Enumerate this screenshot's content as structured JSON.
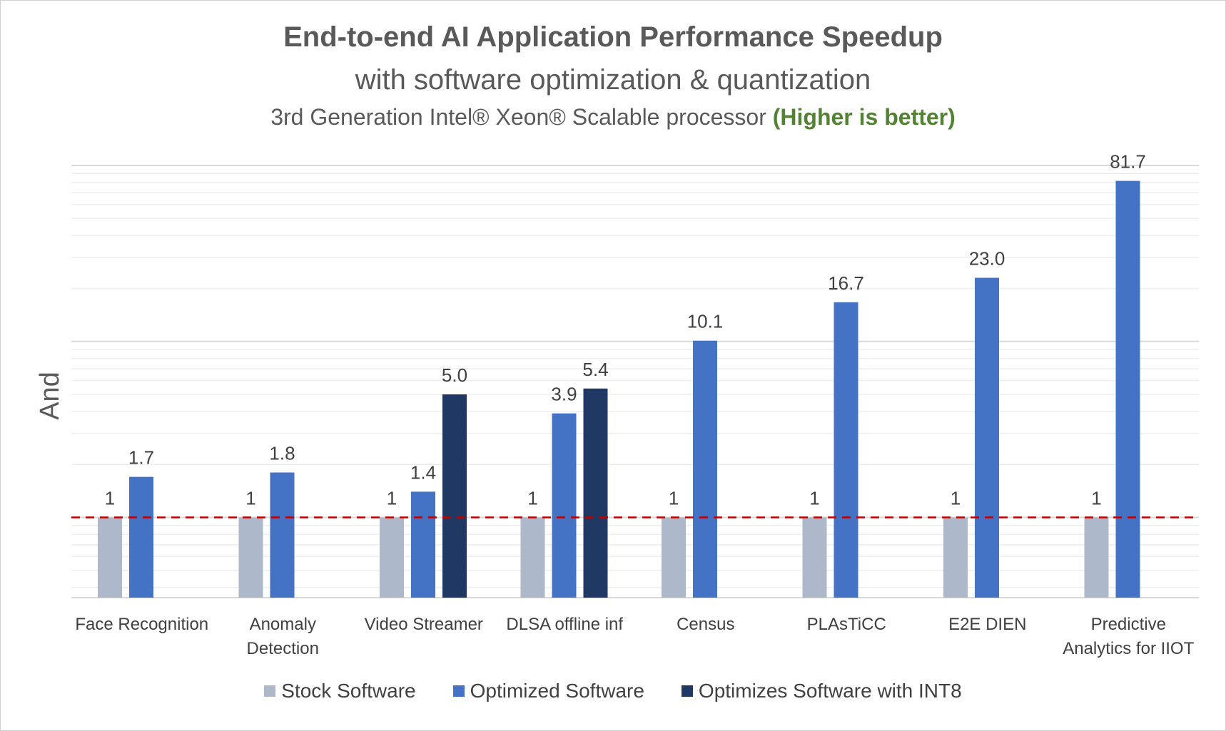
{
  "chart_data": {
    "type": "bar",
    "title": "End-to-end AI Application Performance Speedup",
    "subtitle": "with software optimization & quantization",
    "subtitle2_prefix": "3rd Generation Intel® Xeon® Scalable processor ",
    "subtitle2_highlight": "(Higher is better)",
    "ylabel": "And",
    "xlabel": "",
    "y_scale": "log",
    "ylim": [
      0.35,
      100
    ],
    "grid": true,
    "legend_position": "bottom",
    "reference_line": {
      "y": 1,
      "style": "dashed",
      "color": "#c00000"
    },
    "categories": [
      [
        "Face Recognition"
      ],
      [
        "Anomaly",
        "Detection"
      ],
      [
        "Video Streamer"
      ],
      [
        "DLSA offline inf"
      ],
      [
        "Census"
      ],
      [
        "PLAsTiCC"
      ],
      [
        "E2E DIEN"
      ],
      [
        "Predictive",
        "Analytics for IIOT"
      ]
    ],
    "series": [
      {
        "name": "Stock Software",
        "color": "#adb9ca",
        "values": [
          1,
          1,
          1,
          1,
          1,
          1,
          1,
          1
        ],
        "labels": [
          "1",
          "1",
          "1",
          "1",
          "1",
          "1",
          "1",
          "1"
        ]
      },
      {
        "name": "Optimized Software",
        "color": "#4472c4",
        "values": [
          1.7,
          1.8,
          1.4,
          3.9,
          10.1,
          16.7,
          23.0,
          81.7
        ],
        "labels": [
          "1.7",
          "1.8",
          "1.4",
          "3.9",
          "10.1",
          "16.7",
          "23.0",
          "81.7"
        ]
      },
      {
        "name": "Optimizes Software with INT8",
        "color": "#203864",
        "values": [
          null,
          null,
          5.0,
          5.4,
          null,
          null,
          null,
          null
        ],
        "labels": [
          null,
          null,
          "5.0",
          "5.4",
          null,
          null,
          null,
          null
        ]
      }
    ]
  }
}
